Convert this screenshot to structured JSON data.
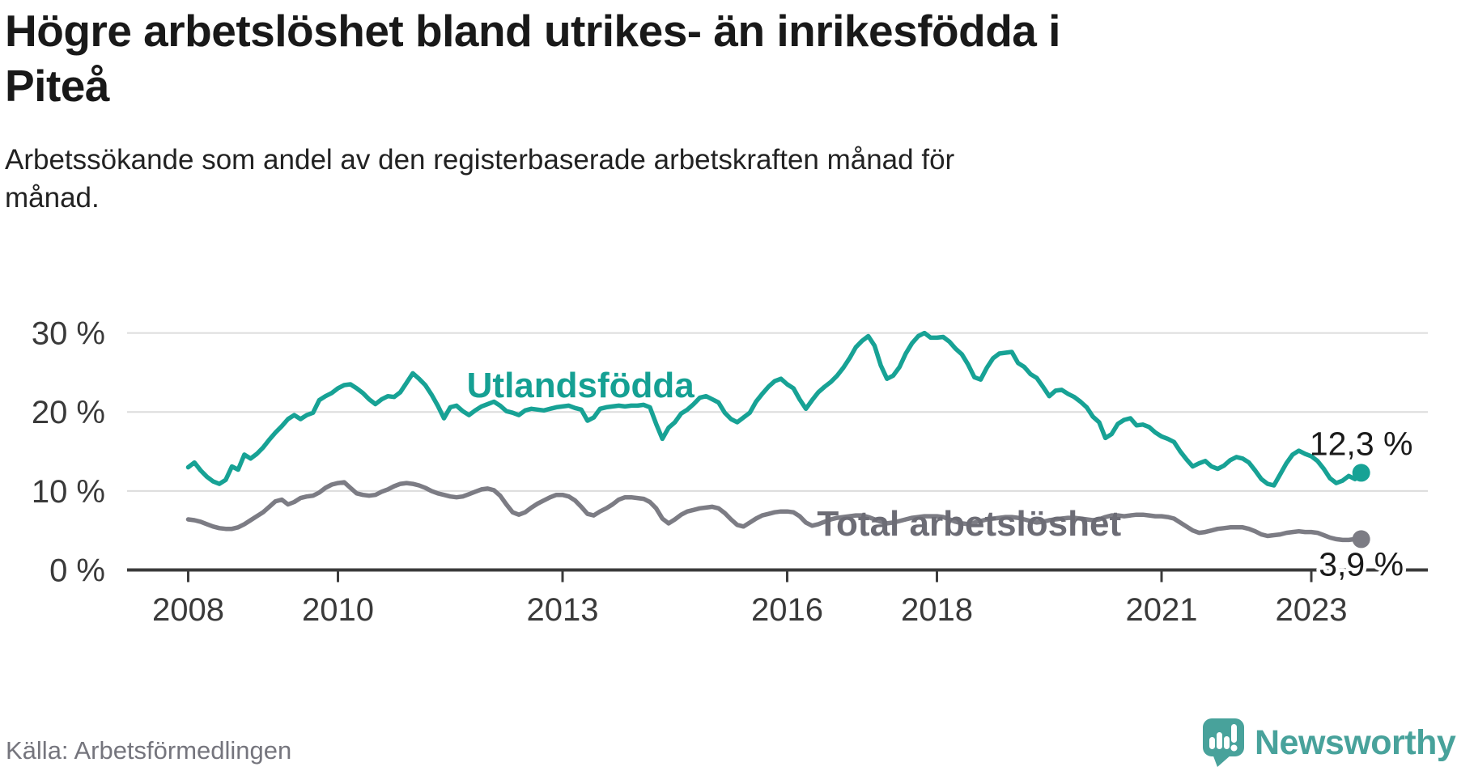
{
  "header": {
    "title_lines": [
      "Högre arbetslöshet bland utrikes- än inrikesfödda i",
      "Piteå"
    ],
    "subtitle_lines": [
      "Arbetssökande som andel av den registerbaserade arbetskraften månad för",
      "månad."
    ]
  },
  "footer": {
    "source": "Källa: Arbetsförmedlingen",
    "brand": "Newsworthy"
  },
  "colors": {
    "accent_teal": "#17a295",
    "series_gray": "#7c7c84",
    "series_label_gray": "#6c6c75",
    "grid": "#dcdcdc",
    "axis": "#3b3b3b",
    "axis_text": "#3a3a3a",
    "value_label": "#1a1a1a",
    "title_text": "#191919",
    "source_text": "#75757d",
    "brand_teal": "#48a29b"
  },
  "chart_data": {
    "type": "line",
    "x_start_year": 2008,
    "x_step": "month",
    "x_end_label": "Sep 2023",
    "x_ticks": [
      2008,
      2010,
      2013,
      2016,
      2018,
      2021,
      2023
    ],
    "y_ticks": [
      {
        "value": 0,
        "label": "0 %"
      },
      {
        "value": 10,
        "label": "10 %"
      },
      {
        "value": 20,
        "label": "20 %"
      },
      {
        "value": 30,
        "label": "30 %"
      }
    ],
    "ylim": [
      0,
      31.5
    ],
    "grid": true,
    "legend_position": "inline-labels",
    "series": [
      {
        "name": "Total arbetslöshet",
        "color": "#7c7c84",
        "label_color": "#6c6c75",
        "label_anchor": {
          "year": 2018.43,
          "value": 4.35
        },
        "end_label": "3,9 %",
        "end_label_pos": "below",
        "end_value": 3.9,
        "values": [
          6.4,
          6.3,
          6.1,
          5.8,
          5.5,
          5.3,
          5.2,
          5.2,
          5.4,
          5.8,
          6.3,
          6.8,
          7.3,
          8.0,
          8.7,
          8.9,
          8.3,
          8.6,
          9.1,
          9.3,
          9.4,
          9.8,
          10.4,
          10.8,
          11.0,
          11.1,
          10.4,
          9.7,
          9.5,
          9.4,
          9.5,
          9.9,
          10.2,
          10.6,
          10.9,
          11.0,
          10.9,
          10.7,
          10.4,
          10.0,
          9.7,
          9.5,
          9.3,
          9.2,
          9.3,
          9.6,
          9.9,
          10.2,
          10.3,
          10.1,
          9.4,
          8.3,
          7.3,
          7.0,
          7.3,
          7.9,
          8.4,
          8.8,
          9.2,
          9.5,
          9.5,
          9.3,
          8.8,
          8.0,
          7.1,
          6.9,
          7.4,
          7.8,
          8.3,
          8.9,
          9.2,
          9.2,
          9.1,
          9.0,
          8.6,
          7.8,
          6.5,
          5.9,
          6.4,
          7.0,
          7.4,
          7.6,
          7.8,
          7.9,
          8.0,
          7.8,
          7.2,
          6.4,
          5.7,
          5.5,
          6.0,
          6.5,
          6.9,
          7.1,
          7.3,
          7.4,
          7.4,
          7.3,
          6.8,
          6.0,
          5.6,
          5.8,
          6.1,
          6.4,
          6.6,
          6.7,
          6.8,
          6.9,
          6.9,
          6.7,
          6.4,
          6.1,
          5.9,
          6.0,
          6.2,
          6.4,
          6.6,
          6.7,
          6.8,
          6.8,
          6.8,
          6.7,
          6.4,
          6.1,
          5.9,
          5.8,
          6.0,
          6.2,
          6.4,
          6.5,
          6.6,
          6.7,
          6.7,
          6.6,
          6.4,
          6.2,
          6.0,
          6.1,
          6.3,
          6.4,
          6.5,
          6.6,
          6.6,
          6.5,
          6.4,
          6.3,
          6.4,
          6.7,
          6.9,
          6.9,
          6.8,
          6.9,
          7.0,
          7.0,
          6.9,
          6.8,
          6.8,
          6.7,
          6.5,
          6.0,
          5.5,
          5.0,
          4.7,
          4.8,
          5.0,
          5.2,
          5.3,
          5.4,
          5.4,
          5.4,
          5.2,
          4.9,
          4.5,
          4.3,
          4.4,
          4.5,
          4.7,
          4.8,
          4.9,
          4.8,
          4.8,
          4.7,
          4.4,
          4.1,
          3.9,
          3.8,
          3.8,
          3.9,
          3.9
        ]
      },
      {
        "name": "Utlandsfödda",
        "color": "#17a295",
        "label_color": "#15a093",
        "label_anchor": {
          "year": 2013.24,
          "value": 21.87
        },
        "end_label": "12,3 %",
        "end_label_pos": "above",
        "end_value": 12.3,
        "values": [
          13.0,
          13.6,
          12.6,
          11.8,
          11.2,
          10.9,
          11.4,
          13.1,
          12.7,
          14.6,
          14.1,
          14.7,
          15.5,
          16.5,
          17.4,
          18.2,
          19.1,
          19.6,
          19.1,
          19.6,
          19.9,
          21.5,
          22.0,
          22.4,
          23.0,
          23.4,
          23.5,
          23.0,
          22.4,
          21.6,
          21.0,
          21.6,
          22.0,
          21.9,
          22.5,
          23.7,
          24.9,
          24.2,
          23.4,
          22.2,
          20.8,
          19.2,
          20.6,
          20.8,
          20.1,
          19.6,
          20.2,
          20.7,
          21.0,
          21.3,
          20.8,
          20.1,
          19.9,
          19.6,
          20.2,
          20.4,
          20.3,
          20.2,
          20.4,
          20.6,
          20.7,
          20.8,
          20.5,
          20.3,
          18.9,
          19.3,
          20.4,
          20.6,
          20.7,
          20.8,
          20.7,
          20.8,
          20.8,
          20.9,
          20.6,
          18.5,
          16.6,
          18.0,
          18.7,
          19.8,
          20.3,
          21.0,
          21.8,
          22.0,
          21.6,
          21.2,
          19.9,
          19.1,
          18.7,
          19.3,
          19.9,
          21.3,
          22.3,
          23.2,
          23.9,
          24.2,
          23.5,
          23.0,
          21.6,
          20.4,
          21.5,
          22.5,
          23.2,
          23.8,
          24.6,
          25.6,
          26.8,
          28.2,
          29.0,
          29.6,
          28.4,
          25.9,
          24.2,
          24.6,
          25.7,
          27.4,
          28.7,
          29.6,
          30.0,
          29.4,
          29.4,
          29.5,
          28.9,
          28.0,
          27.3,
          26.0,
          24.4,
          24.1,
          25.6,
          26.8,
          27.4,
          27.5,
          27.6,
          26.2,
          25.7,
          24.8,
          24.3,
          23.2,
          22.0,
          22.7,
          22.8,
          22.3,
          21.9,
          21.3,
          20.6,
          19.4,
          18.7,
          16.7,
          17.2,
          18.5,
          19.0,
          19.2,
          18.3,
          18.4,
          18.1,
          17.4,
          16.9,
          16.6,
          16.2,
          15.0,
          14.0,
          13.1,
          13.5,
          13.8,
          13.1,
          12.8,
          13.2,
          13.9,
          14.3,
          14.1,
          13.6,
          12.6,
          11.5,
          10.9,
          10.7,
          12.1,
          13.5,
          14.6,
          15.1,
          14.7,
          14.4,
          13.8,
          12.8,
          11.6,
          11.0,
          11.3,
          11.9,
          11.5,
          12.3
        ]
      }
    ]
  }
}
